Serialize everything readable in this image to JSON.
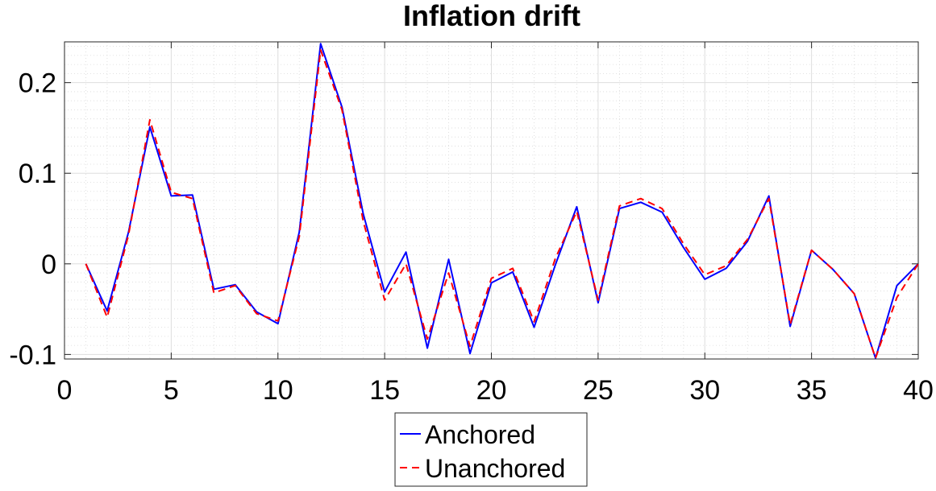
{
  "chart_data": {
    "type": "line",
    "title": "Inflation drift",
    "xlabel": "",
    "ylabel": "",
    "xlim": [
      0,
      40
    ],
    "ylim": [
      -0.105,
      0.245
    ],
    "xticks": [
      0,
      5,
      10,
      15,
      20,
      25,
      30,
      35,
      40
    ],
    "yticks": [
      -0.1,
      0,
      0.1,
      0.2
    ],
    "ytick_labels": [
      "-0.1",
      "0",
      "0.1",
      "0.2"
    ],
    "grid": true,
    "minor_grid": true,
    "legend_position": "bottom-outside",
    "x": [
      1,
      2,
      3,
      4,
      5,
      6,
      7,
      8,
      9,
      10,
      11,
      12,
      13,
      14,
      15,
      16,
      17,
      18,
      19,
      20,
      21,
      22,
      23,
      24,
      25,
      26,
      27,
      28,
      29,
      30,
      31,
      32,
      33,
      34,
      35,
      36,
      37,
      38,
      39,
      40
    ],
    "series": [
      {
        "name": "Anchored",
        "color": "#0000ff",
        "style": "solid",
        "values": [
          0.0,
          -0.052,
          0.035,
          0.151,
          0.075,
          0.076,
          -0.028,
          -0.023,
          -0.053,
          -0.066,
          0.035,
          0.243,
          0.173,
          0.055,
          -0.031,
          0.013,
          -0.093,
          0.005,
          -0.099,
          -0.021,
          -0.009,
          -0.07,
          -0.001,
          0.063,
          -0.043,
          0.061,
          0.068,
          0.057,
          0.018,
          -0.017,
          -0.005,
          0.025,
          0.075,
          -0.069,
          0.015,
          -0.006,
          -0.033,
          -0.104,
          -0.024,
          0.0
        ]
      },
      {
        "name": "Unanchored",
        "color": "#ff0000",
        "style": "dashed",
        "values": [
          0.0,
          -0.059,
          0.032,
          0.159,
          0.079,
          0.072,
          -0.032,
          -0.024,
          -0.055,
          -0.063,
          0.03,
          0.236,
          0.17,
          0.047,
          -0.04,
          0.0,
          -0.083,
          -0.01,
          -0.091,
          -0.016,
          -0.005,
          -0.064,
          0.006,
          0.058,
          -0.04,
          0.064,
          0.072,
          0.061,
          0.022,
          -0.012,
          -0.002,
          0.027,
          0.072,
          -0.067,
          0.015,
          -0.006,
          -0.033,
          -0.104,
          -0.037,
          0.0
        ]
      }
    ]
  }
}
